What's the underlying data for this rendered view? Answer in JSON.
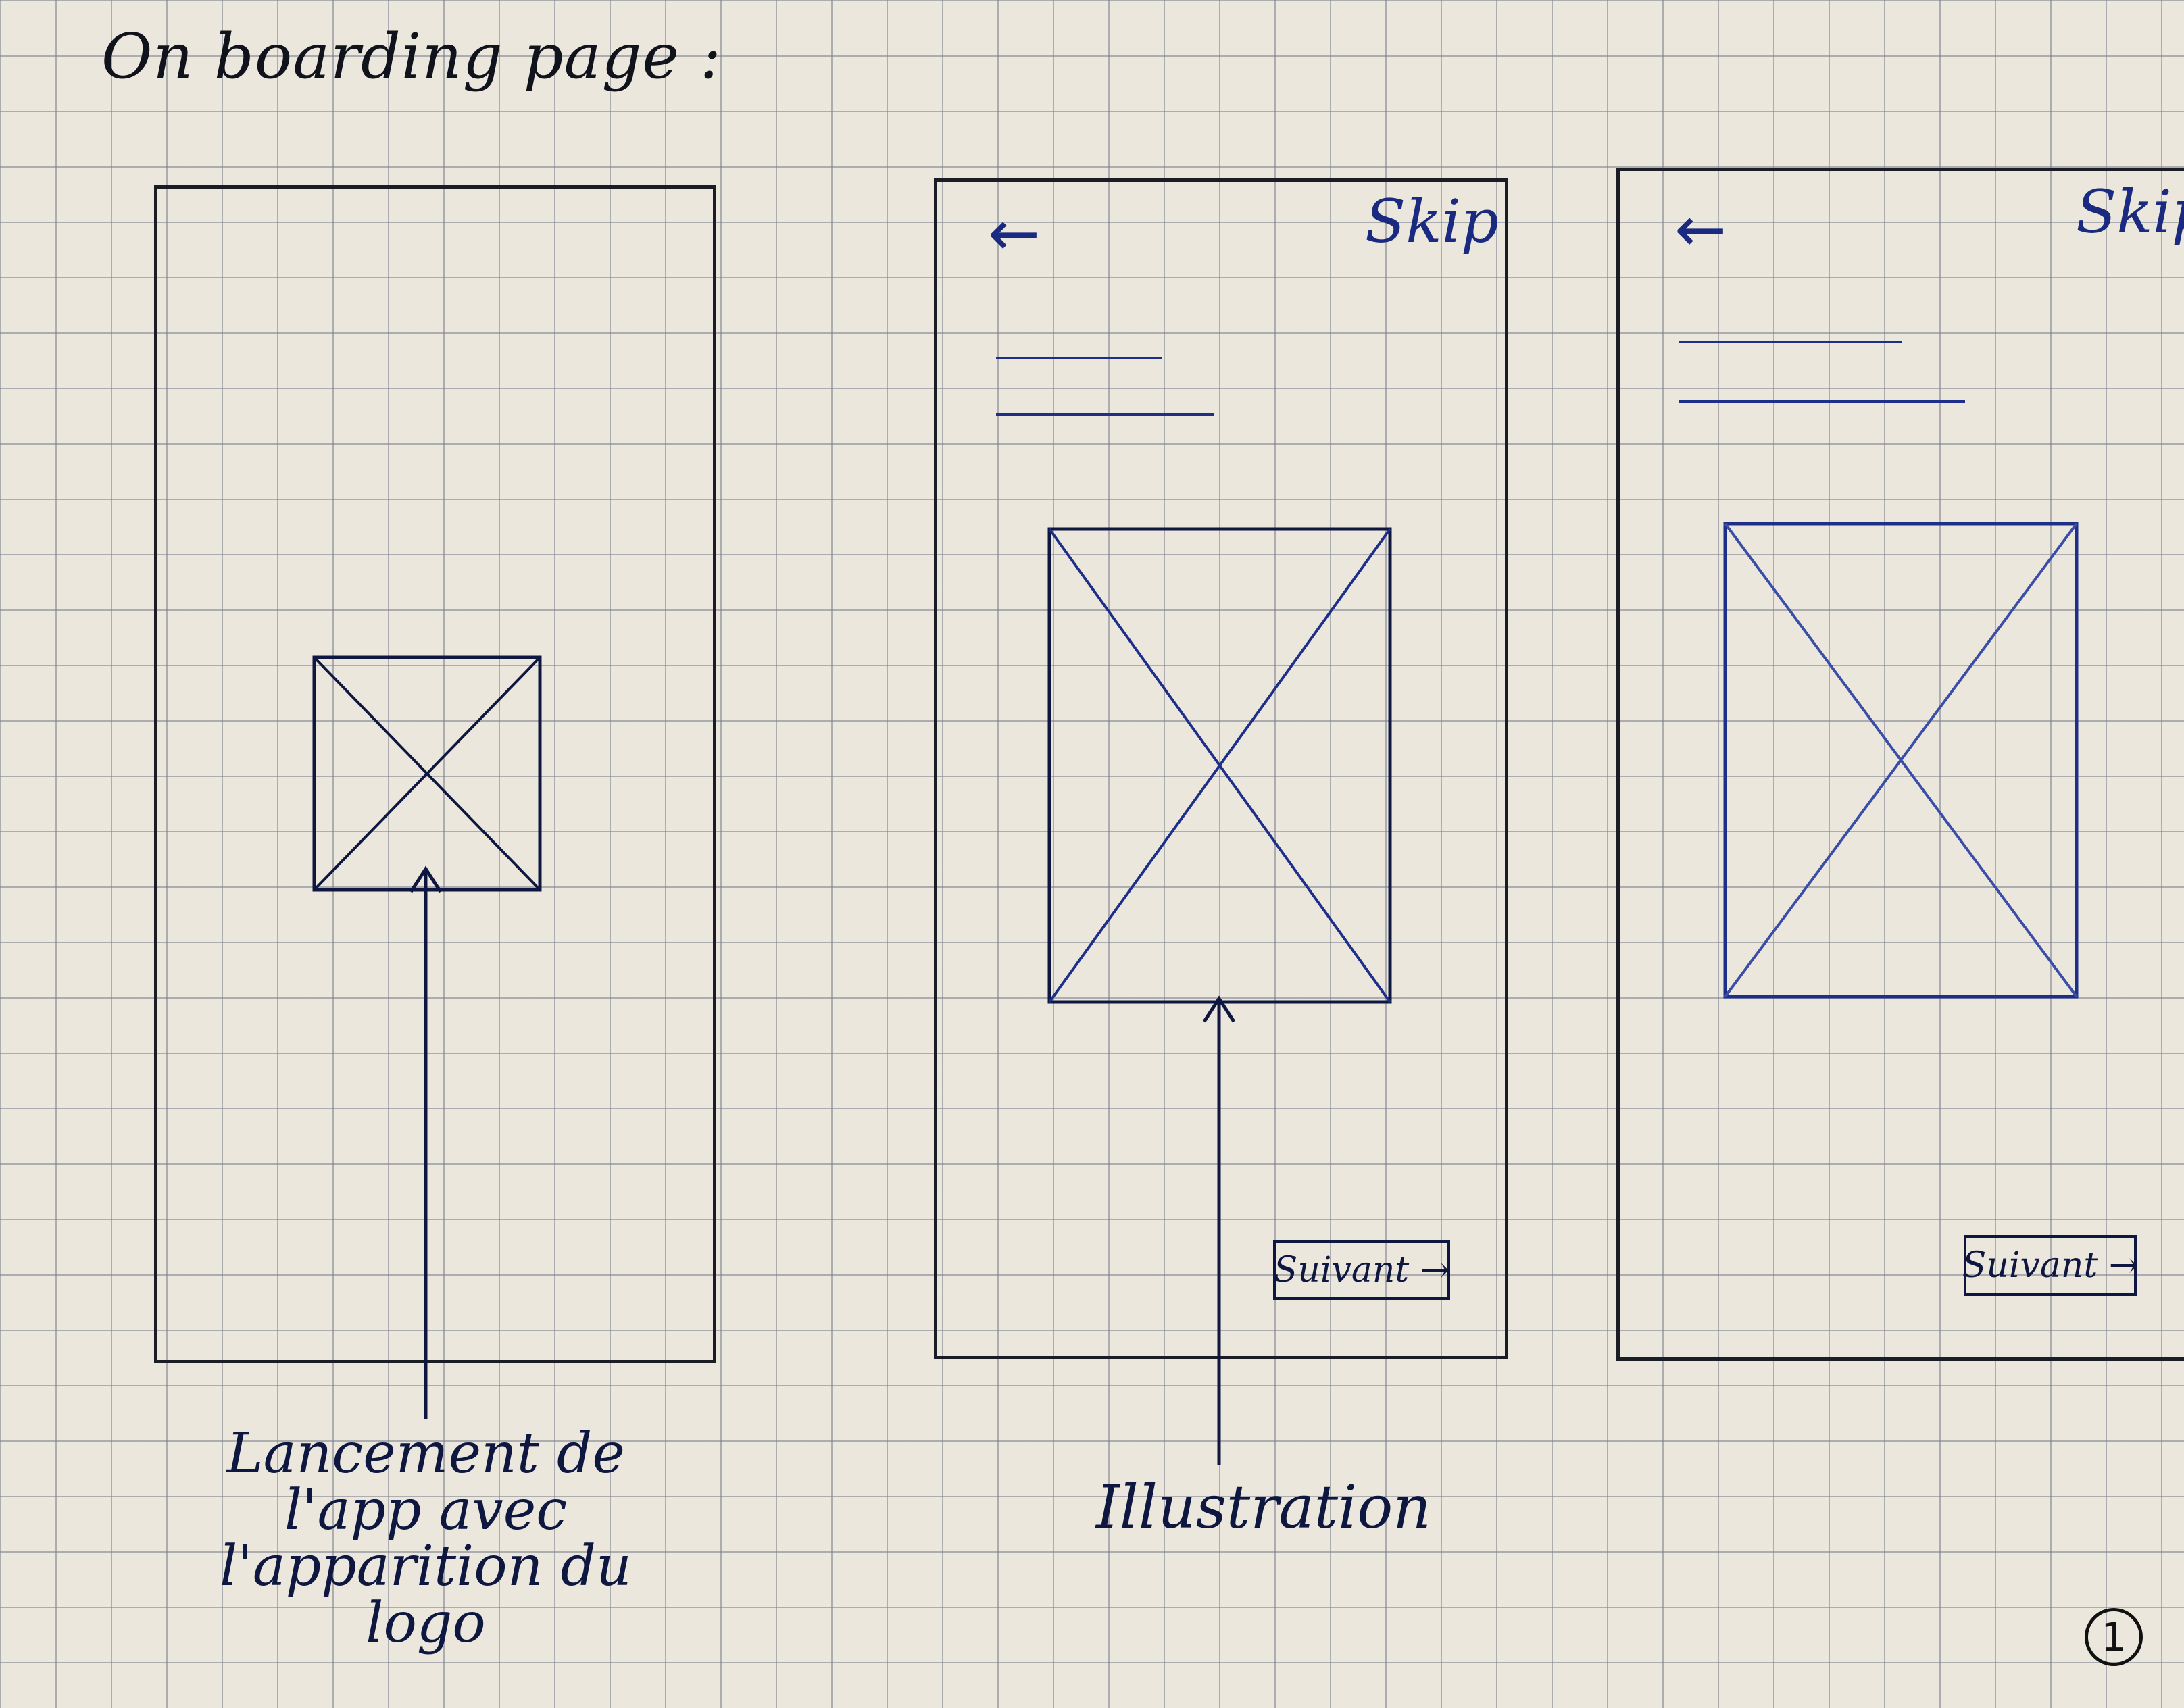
{
  "title": "On boarding page :",
  "screens": {
    "splash": {},
    "onboarding_1": {
      "back_icon": "←",
      "skip_label": "Skip",
      "next_label": "Suivant →"
    },
    "onboarding_2": {
      "back_icon": "←",
      "skip_label": "Skip",
      "next_label": "Suivant →"
    }
  },
  "annotations": {
    "logo_callout": [
      "Lancement de",
      "l'app avec",
      "l'apparition du",
      "logo"
    ],
    "illustration_callout": "Illustration"
  },
  "page_number": "1",
  "colors": {
    "pencil_ink": "#1a1d24",
    "blue_ink": "#1e2f8a",
    "paper": "#ece7dc",
    "grid": "#787d8c"
  }
}
